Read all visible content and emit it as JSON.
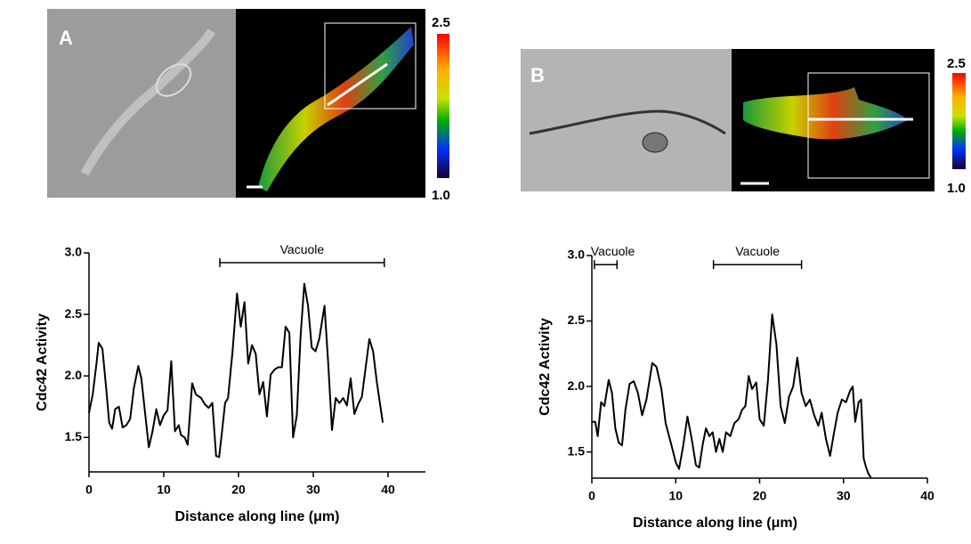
{
  "panels": [
    {
      "label": "A",
      "colorbar_max": "2.5",
      "colorbar_min": "1.0"
    },
    {
      "label": "B",
      "colorbar_max": "2.5",
      "colorbar_min": "1.0"
    }
  ],
  "chart_data": [
    {
      "type": "line",
      "ylabel": "Cdc42 Activity",
      "xlabel": "Distance along line (μm)",
      "color": "#000000",
      "xlim": [
        0,
        45
      ],
      "xticks": [
        0,
        10,
        20,
        30,
        40
      ],
      "ylim": [
        1.22,
        3.0
      ],
      "yticks": [
        {
          "value": 1.5,
          "label": "1.5"
        },
        {
          "value": 2,
          "label": "2.0"
        },
        {
          "value": 2.5,
          "label": "2.5"
        },
        {
          "value": 3,
          "label": "3.0"
        }
      ],
      "annotations": [
        {
          "text": "Vacuole",
          "x": [
            17.5,
            39.5
          ],
          "y": 2.92
        }
      ],
      "x": [
        0,
        0.5,
        1,
        1.3,
        1.8,
        2.3,
        2.7,
        3.1,
        3.5,
        4,
        4.5,
        5,
        5.5,
        6,
        6.6,
        7,
        7.5,
        8,
        8.5,
        9,
        9.5,
        10,
        10.5,
        11,
        11.5,
        12,
        12.3,
        12.8,
        13.2,
        13.8,
        14.3,
        15,
        15.5,
        16,
        16.5,
        17,
        17.4,
        17.8,
        18.2,
        18.6,
        19.2,
        19.8,
        20.3,
        20.8,
        21.3,
        21.8,
        22.3,
        22.8,
        23.3,
        23.8,
        24.3,
        24.8,
        25.3,
        25.8,
        26.3,
        26.8,
        27.3,
        27.8,
        28.3,
        28.8,
        29.3,
        29.8,
        30.3,
        30.8,
        31.5,
        32,
        32.5,
        33,
        33.5,
        34,
        34.5,
        35,
        35.5,
        36,
        36.5,
        37.5,
        38,
        38.5,
        39.3
      ],
      "values": [
        1.7,
        1.85,
        2.1,
        2.27,
        2.22,
        1.9,
        1.62,
        1.57,
        1.73,
        1.75,
        1.58,
        1.6,
        1.65,
        1.9,
        2.08,
        1.98,
        1.7,
        1.42,
        1.55,
        1.73,
        1.6,
        1.68,
        1.72,
        2.12,
        1.55,
        1.6,
        1.52,
        1.5,
        1.44,
        1.94,
        1.85,
        1.82,
        1.77,
        1.74,
        1.78,
        1.35,
        1.34,
        1.55,
        1.78,
        1.82,
        2.2,
        2.67,
        2.4,
        2.6,
        2.1,
        2.25,
        2.18,
        1.85,
        1.95,
        1.67,
        2.01,
        2.05,
        2.07,
        2.07,
        2.4,
        2.35,
        1.5,
        1.68,
        2.32,
        2.75,
        2.57,
        2.23,
        2.2,
        2.3,
        2.57,
        2.1,
        1.56,
        1.82,
        1.78,
        1.82,
        1.76,
        1.98,
        1.69,
        1.77,
        1.83,
        2.3,
        2.2,
        1.95,
        1.62
      ]
    },
    {
      "type": "line",
      "ylabel": "Cdc42 Activity",
      "xlabel": "Distance along line (μm)",
      "color": "#000000",
      "xlim": [
        0,
        40
      ],
      "xticks": [
        0,
        10,
        20,
        30,
        40
      ],
      "ylim": [
        1.3,
        3.0
      ],
      "yticks": [
        {
          "value": 1.5,
          "label": "1.5"
        },
        {
          "value": 2,
          "label": "2.0"
        },
        {
          "value": 2.5,
          "label": "2.5"
        },
        {
          "value": 3,
          "label": "3.0"
        }
      ],
      "annotations": [
        {
          "text": "Vacuole",
          "x": [
            0.3,
            3
          ],
          "y": 2.93
        },
        {
          "text": "Vacuole",
          "x": [
            14.5,
            25
          ],
          "y": 2.93
        }
      ],
      "x": [
        0,
        0.4,
        0.7,
        1.1,
        1.5,
        2,
        2.4,
        2.8,
        3.2,
        3.6,
        4,
        4.5,
        5,
        5.5,
        6,
        6.5,
        7.2,
        7.7,
        8.3,
        8.8,
        9.5,
        10,
        10.4,
        10.9,
        11.4,
        11.9,
        12.4,
        12.8,
        13.2,
        13.6,
        14,
        14.4,
        14.8,
        15.2,
        15.6,
        16,
        16.5,
        17,
        17.5,
        17.9,
        18.3,
        18.7,
        19.1,
        19.6,
        20,
        20.5,
        21,
        21.5,
        22,
        22.5,
        23,
        23.5,
        24,
        24.5,
        25,
        25.5,
        26,
        26.5,
        27,
        27.4,
        27.9,
        28.4,
        28.8,
        29.3,
        29.8,
        30.3,
        30.8,
        31.1,
        31.4,
        31.8,
        32.1,
        32.4,
        32.7,
        33,
        33.3
      ],
      "values": [
        1.73,
        1.73,
        1.62,
        1.88,
        1.85,
        2.05,
        1.95,
        1.68,
        1.57,
        1.55,
        1.82,
        2.02,
        2.04,
        1.95,
        1.78,
        1.9,
        2.18,
        2.15,
        1.98,
        1.72,
        1.55,
        1.42,
        1.37,
        1.55,
        1.77,
        1.6,
        1.4,
        1.38,
        1.55,
        1.68,
        1.62,
        1.65,
        1.5,
        1.6,
        1.5,
        1.65,
        1.62,
        1.72,
        1.75,
        1.82,
        1.85,
        2.08,
        1.98,
        2.03,
        1.75,
        1.7,
        2.05,
        2.55,
        2.32,
        1.85,
        1.72,
        1.92,
        2,
        2.22,
        1.95,
        1.85,
        1.9,
        1.78,
        1.7,
        1.8,
        1.6,
        1.47,
        1.62,
        1.8,
        1.9,
        1.88,
        1.97,
        2,
        1.73,
        1.88,
        1.9,
        1.45,
        1.38,
        1.33,
        1.3
      ]
    }
  ]
}
